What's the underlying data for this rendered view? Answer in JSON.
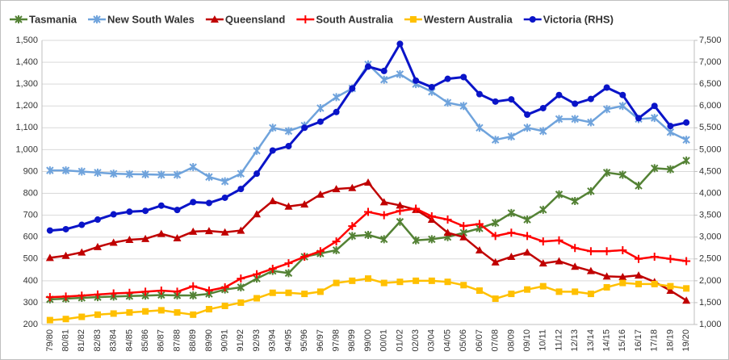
{
  "chart_data": {
    "type": "line",
    "categories": [
      "79/80",
      "80/81",
      "81/82",
      "82/83",
      "83/84",
      "84/85",
      "85/86",
      "86/87",
      "87/88",
      "88/89",
      "89/90",
      "90/91",
      "91/92",
      "92/93",
      "93/94",
      "94/95",
      "95/96",
      "96/97",
      "97/98",
      "98/99",
      "99/00",
      "00/01",
      "01/02",
      "02/03",
      "03/04",
      "04/05",
      "05/06",
      "06/07",
      "07/08",
      "08/09",
      "09/10",
      "10/11",
      "11/12",
      "12/13",
      "13/14",
      "14/15",
      "15/16",
      "16/17",
      "17/18",
      "18/19",
      "19/20"
    ],
    "series": [
      {
        "name": "Tasmania",
        "color": "#548235",
        "marker": "star",
        "values": [
          315,
          318,
          322,
          325,
          328,
          330,
          332,
          335,
          333,
          333,
          340,
          360,
          370,
          410,
          445,
          435,
          510,
          525,
          540,
          605,
          610,
          590,
          670,
          585,
          590,
          600,
          620,
          640,
          665,
          710,
          680,
          725,
          795,
          765,
          810,
          895,
          885,
          835,
          915,
          910,
          950
        ]
      },
      {
        "name": "New South Wales",
        "color": "#6fa3dc",
        "marker": "star",
        "values": [
          905,
          905,
          900,
          895,
          890,
          888,
          887,
          885,
          885,
          920,
          875,
          855,
          890,
          995,
          1100,
          1085,
          1110,
          1190,
          1240,
          1280,
          1390,
          1320,
          1345,
          1300,
          1265,
          1215,
          1200,
          1100,
          1045,
          1060,
          1100,
          1085,
          1140,
          1140,
          1125,
          1185,
          1200,
          1140,
          1145,
          1080,
          1045
        ]
      },
      {
        "name": "Queensland",
        "color": "#c00000",
        "marker": "triangle",
        "values": [
          505,
          515,
          530,
          555,
          575,
          588,
          592,
          615,
          595,
          625,
          628,
          622,
          630,
          705,
          765,
          740,
          750,
          795,
          820,
          825,
          850,
          760,
          745,
          725,
          680,
          620,
          600,
          540,
          485,
          510,
          530,
          480,
          490,
          465,
          445,
          420,
          418,
          425,
          395,
          355,
          310
        ]
      },
      {
        "name": "South Australia",
        "color": "#ff0000",
        "marker": "plus",
        "values": [
          325,
          328,
          332,
          337,
          342,
          345,
          350,
          355,
          350,
          375,
          355,
          370,
          410,
          430,
          455,
          480,
          510,
          535,
          580,
          650,
          715,
          700,
          720,
          730,
          695,
          680,
          650,
          660,
          605,
          620,
          605,
          580,
          585,
          550,
          535,
          535,
          540,
          500,
          510,
          500,
          490
        ]
      },
      {
        "name": "Western Australia",
        "color": "#ffc000",
        "marker": "square",
        "values": [
          220,
          225,
          235,
          245,
          250,
          255,
          260,
          265,
          255,
          245,
          270,
          285,
          300,
          320,
          345,
          345,
          340,
          350,
          390,
          400,
          410,
          390,
          395,
          400,
          400,
          395,
          380,
          355,
          318,
          340,
          360,
          375,
          350,
          350,
          340,
          370,
          390,
          385,
          385,
          375,
          365
        ]
      },
      {
        "name": "Victoria (RHS)",
        "color": "#0a14c8",
        "marker": "circle",
        "axis": "y2",
        "values": [
          3150,
          3180,
          3280,
          3400,
          3520,
          3580,
          3600,
          3720,
          3620,
          3800,
          3780,
          3900,
          4100,
          4450,
          4980,
          5080,
          5500,
          5640,
          5860,
          6400,
          6900,
          6800,
          7420,
          6580,
          6430,
          6620,
          6660,
          6270,
          6100,
          6150,
          5800,
          5950,
          6250,
          6050,
          6160,
          6420,
          6250,
          5720,
          6000,
          5540,
          5620
        ]
      }
    ],
    "ylim": [
      200,
      1500
    ],
    "yticks": [
      200,
      300,
      400,
      500,
      600,
      700,
      800,
      900,
      {
        "value": 1000,
        "label": "1,000"
      },
      {
        "value": 1100,
        "label": "1,100"
      },
      {
        "value": 1200,
        "label": "1,200"
      },
      {
        "value": 1300,
        "label": "1,300"
      },
      {
        "value": 1400,
        "label": "1,400"
      },
      {
        "value": 1500,
        "label": "1,500"
      }
    ],
    "y2lim": [
      1000,
      7500
    ],
    "y2ticks": [
      {
        "value": 1000,
        "label": "1,000"
      },
      {
        "value": 1500,
        "label": "1,500"
      },
      {
        "value": 2000,
        "label": "2,000"
      },
      {
        "value": 2500,
        "label": "2,500"
      },
      {
        "value": 3000,
        "label": "3,000"
      },
      {
        "value": 3500,
        "label": "3,500"
      },
      {
        "value": 4000,
        "label": "4,000"
      },
      {
        "value": 4500,
        "label": "4,500"
      },
      {
        "value": 5000,
        "label": "5,000"
      },
      {
        "value": 5500,
        "label": "5,500"
      },
      {
        "value": 6000,
        "label": "6,000"
      },
      {
        "value": 6500,
        "label": "6,500"
      },
      {
        "value": 7000,
        "label": "7,000"
      },
      {
        "value": 7500,
        "label": "7,500"
      }
    ],
    "grid": true,
    "legend": "top"
  }
}
